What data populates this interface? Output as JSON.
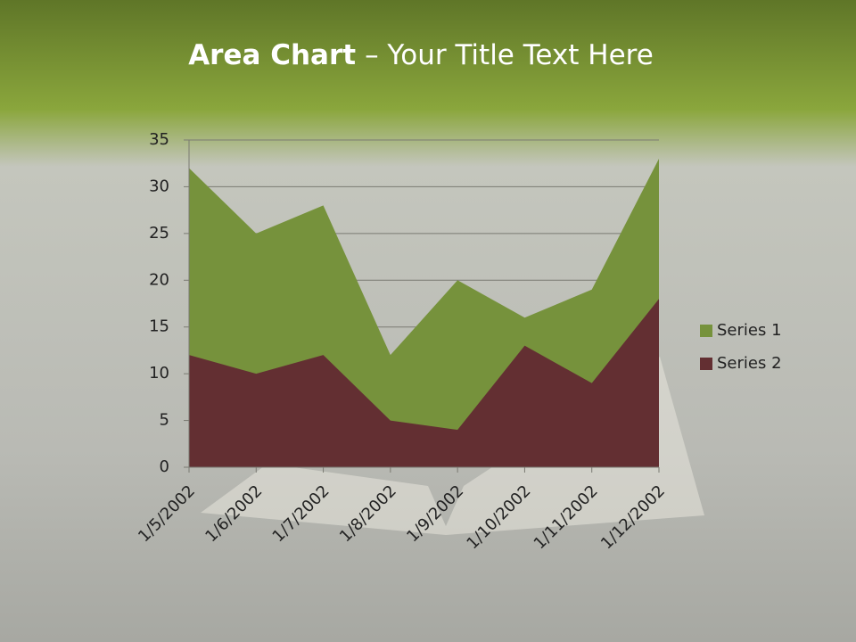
{
  "chart_data": {
    "type": "area",
    "title": {
      "bold": "Area Chart",
      "rest": "– Your Title Text Here"
    },
    "categories": [
      "1/5/2002",
      "1/6/2002",
      "1/7/2002",
      "1/8/2002",
      "1/9/2002",
      "1/10/2002",
      "1/11/2002",
      "1/12/2002"
    ],
    "series": [
      {
        "name": "Series 1",
        "color": "#76923c",
        "values": [
          32,
          25,
          28,
          12,
          20,
          16,
          19,
          33
        ]
      },
      {
        "name": "Series 2",
        "color": "#632f32",
        "values": [
          12,
          10,
          12,
          5,
          4,
          13,
          9,
          18
        ]
      }
    ],
    "ylim": [
      0,
      35
    ],
    "yticks": [
      0,
      5,
      10,
      15,
      20,
      25,
      30,
      35
    ],
    "grid": true,
    "legend": "right"
  }
}
